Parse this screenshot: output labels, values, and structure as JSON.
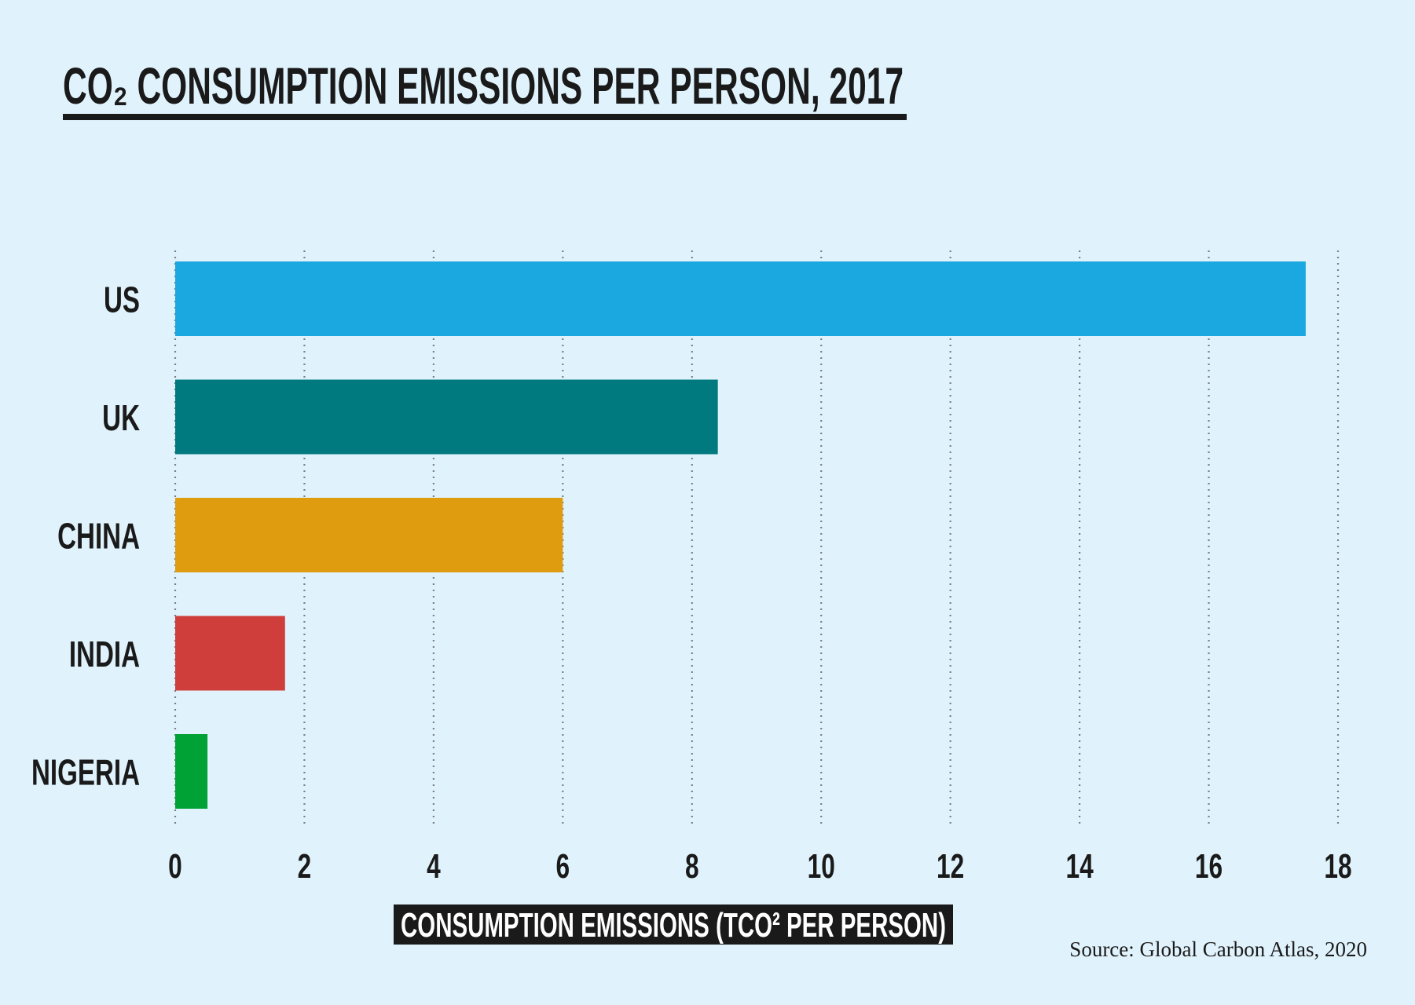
{
  "chart_data": {
    "type": "bar",
    "orientation": "horizontal",
    "title": "CO₂ CONSUMPTION EMISSIONS PER PERSON, 2017",
    "xlabel": "CONSUMPTION EMISSIONS (TCO² PER PERSON)",
    "ylabel": "",
    "categories": [
      "US",
      "UK",
      "CHINA",
      "INDIA",
      "NIGERIA"
    ],
    "values": [
      17.5,
      8.4,
      6.0,
      1.7,
      0.5
    ],
    "colors": [
      "#1ba8e0",
      "#007a7f",
      "#de9c0e",
      "#d03e3c",
      "#00a236"
    ],
    "xlim": [
      0,
      18
    ],
    "xticks": [
      "0",
      "2",
      "4",
      "6",
      "8",
      "10",
      "12",
      "14",
      "16",
      "18"
    ],
    "grid": "vertical dotted",
    "source": "Source: Global Carbon Atlas, 2020"
  }
}
